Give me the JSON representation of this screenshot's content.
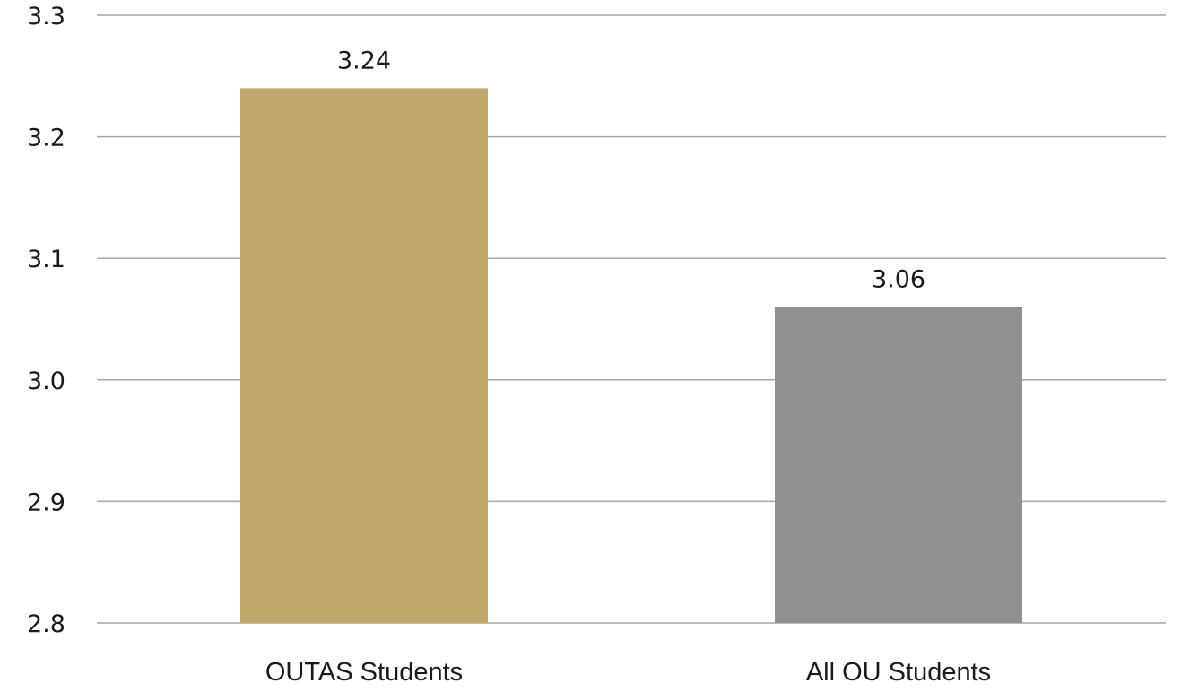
{
  "chart_data": {
    "type": "bar",
    "title": "",
    "xlabel": "",
    "ylabel": "",
    "categories": [
      "OUTAS Students",
      "All OU Students"
    ],
    "values": [
      3.24,
      3.06
    ],
    "value_labels": [
      "3.24",
      "3.06"
    ],
    "colors": [
      "#c2a96b",
      "#909090"
    ],
    "ylim": [
      2.8,
      3.3
    ],
    "yticks": [
      2.8,
      2.9,
      3.0,
      3.1,
      3.2,
      3.3
    ],
    "ytick_labels": [
      "2.8",
      "2.9",
      "3.0",
      "3.1",
      "3.2",
      "3.3"
    ],
    "grid": true,
    "legend": "none"
  }
}
